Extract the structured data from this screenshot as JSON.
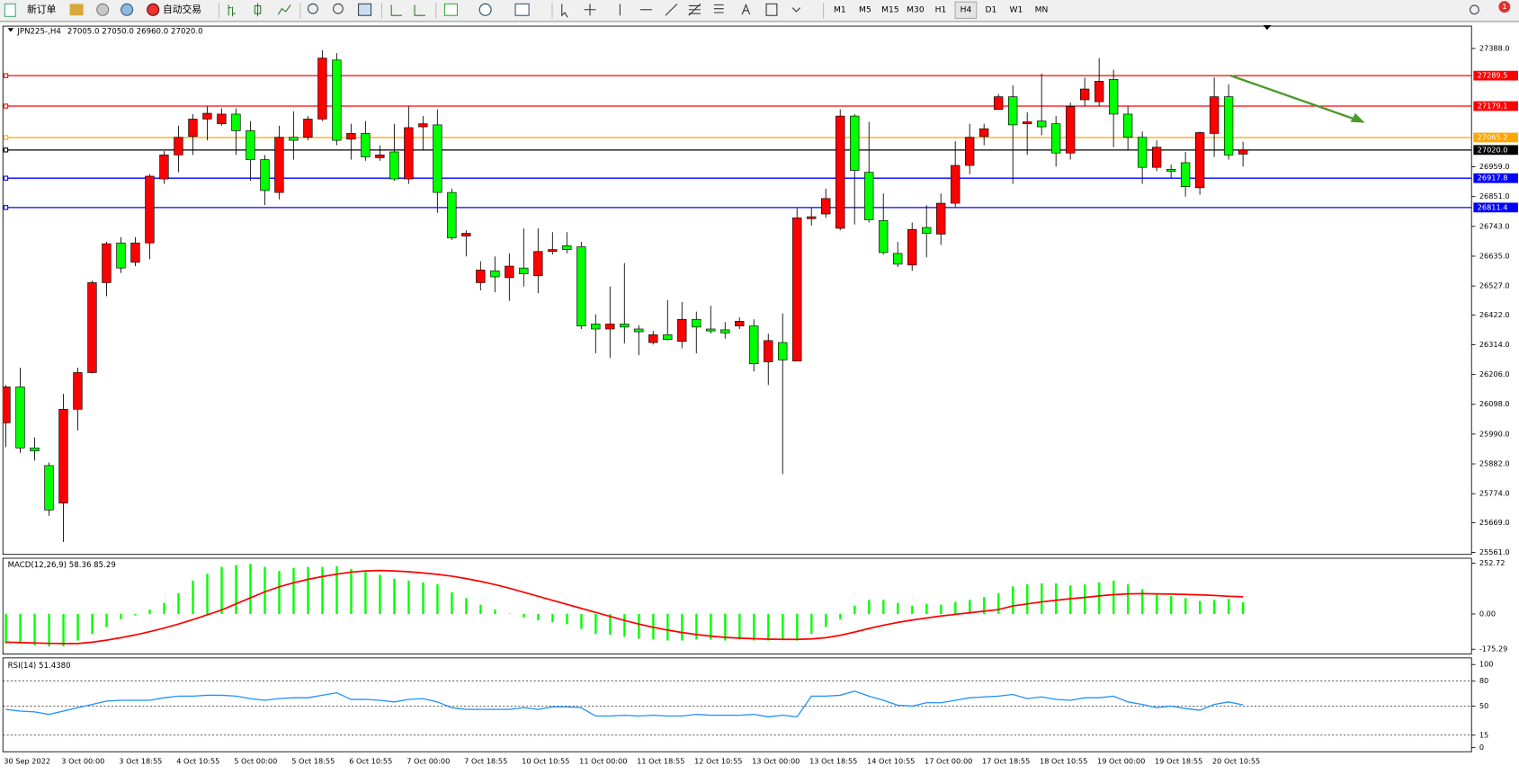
{
  "toolbar": {
    "new_order": "新订单",
    "auto_trading": "自动交易",
    "timeframes": [
      "M1",
      "M5",
      "M15",
      "M30",
      "H1",
      "H4",
      "D1",
      "W1",
      "MN"
    ],
    "alerts": "1"
  },
  "chart_data": [
    {
      "type": "candlestick",
      "header": [
        "JPN225-,H4",
        "27005.0",
        "27050.0",
        "26960.0",
        "27020.0"
      ],
      "categories": [
        "30 Sep 2022",
        null,
        null,
        null,
        "3 Oct 00:00",
        null,
        null,
        null,
        "3 Oct 18:55",
        null,
        null,
        null,
        "4 Oct 10:55",
        null,
        null,
        null,
        "5 Oct 00:00",
        null,
        null,
        null,
        "5 Oct 18:55",
        null,
        null,
        null,
        "6 Oct 10:55",
        null,
        null,
        null,
        "7 Oct 00:00",
        null,
        null,
        null,
        "7 Oct 18:55",
        null,
        null,
        null,
        "10 Oct 10:55",
        null,
        null,
        null,
        "11 Oct 00:00",
        null,
        null,
        null,
        "11 Oct 18:55",
        null,
        null,
        null,
        "12 Oct 10:55",
        null,
        null,
        null,
        "13 Oct 00:00",
        null,
        null,
        null,
        "13 Oct 18:55",
        null,
        null,
        null,
        "14 Oct 10:55",
        null,
        null,
        null,
        "17 Oct 00:00",
        null,
        null,
        null,
        "17 Oct 18:55",
        null,
        null,
        null,
        "18 Oct 10:55",
        null,
        null,
        null,
        "19 Oct 00:00",
        null,
        null,
        null,
        "19 Oct 18:55",
        null,
        null,
        null,
        "20 Oct 10:55",
        null,
        null
      ],
      "open": [
        26031,
        26161,
        25940,
        25876,
        25740,
        26080,
        26213,
        26539,
        26683,
        26613,
        26683,
        26915,
        27002,
        27069,
        27132,
        27115,
        27150,
        27090,
        26985,
        26866,
        27066,
        27066,
        27132,
        27346,
        27059,
        27080,
        26992,
        27013,
        26915,
        27104,
        27111,
        26866,
        26708,
        26539,
        26582,
        26557,
        26592,
        26564,
        26652,
        26673,
        26669,
        26389,
        26371,
        26389,
        26371,
        26322,
        26350,
        26326,
        26406,
        26371,
        26368,
        26382,
        26382,
        26252,
        26322,
        26255,
        26771,
        26788,
        26736,
        27143,
        26939,
        26764,
        26645,
        26603,
        26739,
        26715,
        26827,
        26964,
        27069,
        27167,
        27213,
        27115,
        27125,
        27115,
        27009,
        27202,
        27195,
        27276,
        27150,
        27066,
        26957,
        26950,
        26974,
        26883,
        27080,
        27213,
        27005
      ],
      "high": [
        26168,
        26231,
        25978,
        25887,
        26136,
        26231,
        26546,
        26687,
        26704,
        26704,
        26932,
        27016,
        27108,
        27150,
        27178,
        27171,
        27171,
        27125,
        27002,
        27108,
        27160,
        27143,
        27381,
        27371,
        27115,
        27125,
        27037,
        27115,
        27178,
        27143,
        27167,
        26880,
        26729,
        26617,
        26634,
        26645,
        26736,
        26736,
        26722,
        26722,
        26687,
        26424,
        26525,
        26610,
        26385,
        26364,
        26476,
        26469,
        26434,
        26455,
        26396,
        26413,
        26406,
        26354,
        26427,
        26809,
        26809,
        26880,
        27167,
        27150,
        27122,
        26862,
        26687,
        26757,
        26820,
        26862,
        27052,
        27115,
        27115,
        27223,
        27255,
        27157,
        27297,
        27143,
        27192,
        27283,
        27353,
        27311,
        27178,
        27087,
        27055,
        26967,
        27013,
        27087,
        27283,
        27258,
        27050
      ],
      "low": [
        25943,
        25922,
        25894,
        25694,
        25599,
        26003,
        26210,
        26490,
        26574,
        26599,
        26624,
        26897,
        26939,
        27002,
        27055,
        27108,
        27002,
        26908,
        26820,
        26841,
        26985,
        27055,
        27125,
        27037,
        26985,
        26981,
        26981,
        26908,
        26897,
        27020,
        26792,
        26694,
        26634,
        26511,
        26504,
        26473,
        26525,
        26501,
        26641,
        26645,
        26371,
        26283,
        26266,
        26319,
        26276,
        26315,
        26329,
        26301,
        26283,
        26354,
        26336,
        26371,
        26217,
        26168,
        25845,
        26255,
        26746,
        26774,
        26729,
        26750,
        26757,
        26641,
        26596,
        26582,
        26631,
        26676,
        26813,
        26932,
        27037,
        27167,
        26897,
        27002,
        27073,
        26960,
        26985,
        27178,
        27178,
        27030,
        27020,
        26897,
        26943,
        26918,
        26851,
        26858,
        26995,
        26985,
        26960
      ],
      "close": [
        26161,
        25940,
        25929,
        25715,
        26080,
        26213,
        26539,
        26680,
        26592,
        26683,
        26925,
        27002,
        27066,
        27132,
        27153,
        27150,
        27090,
        26985,
        26873,
        27066,
        27055,
        27132,
        27353,
        27055,
        27080,
        26995,
        27002,
        26915,
        27101,
        27115,
        26866,
        26701,
        26718,
        26585,
        26560,
        26599,
        26571,
        26652,
        26659,
        26659,
        26382,
        26371,
        26389,
        26378,
        26361,
        26350,
        26333,
        26406,
        26378,
        26364,
        26357,
        26399,
        26245,
        26329,
        26259,
        26774,
        26778,
        26844,
        27143,
        26946,
        26767,
        26648,
        26606,
        26732,
        26718,
        26827,
        26964,
        27066,
        27097,
        27213,
        27111,
        27122,
        27104,
        27009,
        27178,
        27241,
        27269,
        27150,
        27066,
        26957,
        27030,
        26943,
        26887,
        27083,
        27213,
        27002,
        27020
      ],
      "up_color": "#ff0000",
      "down_color": "#00ff00",
      "ylim": [
        25554,
        27469
      ],
      "yticks": [
        {
          "value": 27388,
          "label": "27388.0"
        },
        {
          "value": 26959,
          "label": "26959.0"
        },
        {
          "value": 26851,
          "label": "26851.0"
        },
        {
          "value": 26743,
          "label": "26743.0"
        },
        {
          "value": 26635,
          "label": "26635.0"
        },
        {
          "value": 26527,
          "label": "26527.0"
        },
        {
          "value": 26422,
          "label": "26422.0"
        },
        {
          "value": 26314,
          "label": "26314.0"
        },
        {
          "value": 26206,
          "label": "26206.0"
        },
        {
          "value": 26098,
          "label": "26098.0"
        },
        {
          "value": 25990,
          "label": "25990.0"
        },
        {
          "value": 25882,
          "label": "25882.0"
        },
        {
          "value": 25774,
          "label": "25774.0"
        },
        {
          "value": 25669,
          "label": "25669.0"
        },
        {
          "value": 25561,
          "label": "25561.0"
        }
      ],
      "price_lines": [
        {
          "value": 27289.5,
          "color": "#ff0000"
        },
        {
          "value": 27179.1,
          "color": "#ff0000"
        },
        {
          "value": 27065.2,
          "color": "#ffa500"
        },
        {
          "value": 27020.0,
          "label": "27020.0",
          "color": "#000000"
        },
        {
          "value": 26917.8,
          "color": "#0000ff"
        },
        {
          "value": 26811.4,
          "color": "#0000ff"
        }
      ]
    },
    {
      "type": "macd",
      "title": "MACD(12,26,9) 58.36 85.29",
      "histogram": {
        "color": "#00ff00",
        "values": [
          -147,
          -147,
          -156,
          -161,
          -161,
          -132,
          -99,
          -65,
          -26,
          -7,
          22,
          55,
          103,
          166,
          200,
          234,
          243,
          250,
          234,
          214,
          229,
          234,
          234,
          238,
          224,
          209,
          195,
          176,
          166,
          157,
          147,
          108,
          79,
          46,
          22,
          2,
          -17,
          -31,
          -41,
          -51,
          -75,
          -99,
          -103,
          -113,
          -123,
          -127,
          -132,
          -132,
          -127,
          -127,
          -132,
          -127,
          -132,
          -132,
          -127,
          -132,
          -99,
          -65,
          -26,
          41,
          70,
          70,
          55,
          41,
          51,
          46,
          60,
          70,
          84,
          103,
          137,
          147,
          152,
          152,
          142,
          147,
          157,
          166,
          147,
          123,
          103,
          89,
          79,
          65,
          70,
          75,
          58.36
        ]
      },
      "signal": {
        "color": "#ff0000",
        "values": [
          -140,
          -142,
          -144,
          -146,
          -147,
          -147,
          -140,
          -130,
          -118,
          -104,
          -88,
          -70,
          -50,
          -28,
          -4,
          20,
          50,
          80,
          110,
          135,
          155,
          172,
          186,
          198,
          208,
          214,
          216,
          214,
          210,
          204,
          197,
          188,
          176,
          162,
          146,
          128,
          108,
          88,
          68,
          48,
          28,
          8,
          -12,
          -32,
          -50,
          -66,
          -80,
          -92,
          -102,
          -110,
          -116,
          -120,
          -123,
          -125,
          -126,
          -126,
          -124,
          -118,
          -106,
          -90,
          -72,
          -56,
          -42,
          -30,
          -20,
          -10,
          -2,
          6,
          14,
          22,
          40,
          50,
          60,
          68,
          76,
          82,
          90,
          96,
          100,
          101,
          100,
          99,
          97,
          95,
          92,
          88,
          85.29
        ]
      },
      "ylim": [
        -199,
        277
      ],
      "yticks": [
        252.72,
        {
          "value": 0,
          "label": "0.00"
        },
        -175.29
      ]
    },
    {
      "type": "line",
      "title": "RSI(14) 51.4380",
      "color": "#1e90ff",
      "values": [
        46,
        44,
        43,
        40,
        44,
        48,
        52,
        56,
        57,
        57,
        57,
        60,
        62,
        62,
        63,
        63,
        62,
        59,
        57,
        59,
        60,
        60,
        63,
        66,
        58,
        58,
        57,
        55,
        58,
        59,
        55,
        48,
        46,
        46,
        46,
        46,
        48,
        46,
        49,
        49,
        48,
        38,
        38,
        39,
        38,
        39,
        38,
        38,
        40,
        39,
        39,
        39,
        40,
        37,
        39,
        37,
        62,
        62,
        63,
        68,
        62,
        57,
        51,
        50,
        54,
        54,
        57,
        60,
        61,
        62,
        64,
        59,
        61,
        58,
        57,
        60,
        60,
        62,
        55,
        52,
        48,
        50,
        47,
        45,
        52,
        55,
        51.438
      ],
      "ylim": [
        -5,
        108
      ],
      "yticks": [
        100,
        80,
        50,
        15,
        0
      ],
      "levels": [
        80,
        50,
        15
      ]
    }
  ]
}
